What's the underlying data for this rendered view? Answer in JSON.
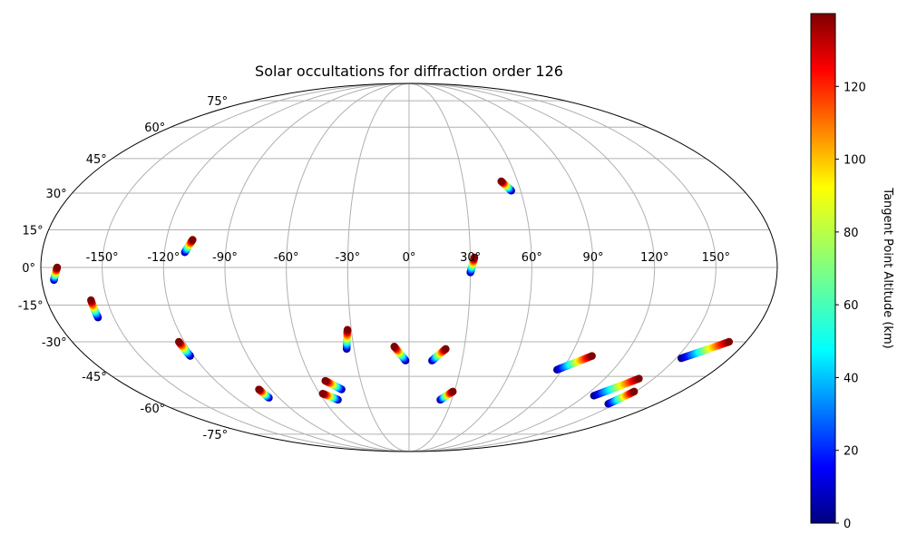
{
  "chart_data": {
    "type": "scatter",
    "projection": "mollweide",
    "title": "Solar occultations for diffraction order 126",
    "lon_ticks": [
      "-150°",
      "-120°",
      "-90°",
      "-60°",
      "-30°",
      "0°",
      "30°",
      "60°",
      "90°",
      "120°",
      "150°"
    ],
    "lon_tick_values": [
      -150,
      -120,
      -90,
      -60,
      -30,
      0,
      30,
      60,
      90,
      120,
      150
    ],
    "lat_ticks": [
      "75°",
      "60°",
      "45°",
      "30°",
      "15°",
      "0°",
      "-15°",
      "-30°",
      "-45°",
      "-60°",
      "-75°"
    ],
    "lat_tick_values": [
      75,
      60,
      45,
      30,
      15,
      0,
      -15,
      -30,
      -45,
      -60,
      -75
    ],
    "grid": true,
    "colormap": "jet",
    "colorbar": {
      "label": "Tangent Point Altitude (km)",
      "ticks": [
        "0",
        "20",
        "40",
        "60",
        "80",
        "100",
        "120"
      ],
      "tick_values": [
        0,
        20,
        40,
        60,
        80,
        100,
        120
      ],
      "range": [
        0,
        140
      ]
    },
    "series": [
      {
        "start": [
          -174,
          -5
        ],
        "end": [
          -172,
          0
        ]
      },
      {
        "start": [
          -158,
          -20
        ],
        "end": [
          -158,
          -13
        ]
      },
      {
        "start": [
          -122,
          -36
        ],
        "end": [
          -123,
          -30
        ]
      },
      {
        "start": [
          -110,
          6
        ],
        "end": [
          -107,
          11
        ]
      },
      {
        "start": [
          -97,
          -55
        ],
        "end": [
          -98,
          -51
        ]
      },
      {
        "start": [
          -50,
          -56
        ],
        "end": [
          -58,
          -53
        ]
      },
      {
        "start": [
          -44,
          -51
        ],
        "end": [
          -52,
          -47
        ]
      },
      {
        "start": [
          -34,
          -33
        ],
        "end": [
          -32,
          -25
        ]
      },
      {
        "start": [
          -2,
          -38
        ],
        "end": [
          -8,
          -32
        ]
      },
      {
        "start": [
          13,
          -38
        ],
        "end": [
          20,
          -33
        ]
      },
      {
        "start": [
          22,
          -56
        ],
        "end": [
          29,
          -52
        ]
      },
      {
        "start": [
          30,
          -2
        ],
        "end": [
          32,
          4
        ]
      },
      {
        "start": [
          55,
          31
        ],
        "end": [
          51,
          35
        ]
      },
      {
        "start": [
          87,
          -42
        ],
        "end": [
          102,
          -36
        ]
      },
      {
        "start": [
          126,
          -54
        ],
        "end": [
          141,
          -46
        ]
      },
      {
        "start": [
          145,
          -58
        ],
        "end": [
          149,
          -52
        ]
      },
      {
        "start": [
          153,
          -37
        ],
        "end": [
          171,
          -30
        ]
      }
    ]
  }
}
